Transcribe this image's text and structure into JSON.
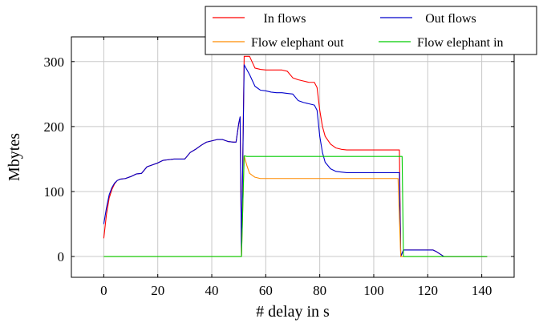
{
  "chart_data": {
    "type": "line",
    "xlabel": "# delay in s",
    "ylabel": "Mbytes",
    "xlim": [
      -12,
      152
    ],
    "ylim": [
      -32,
      338
    ],
    "xticks": [
      0,
      20,
      40,
      60,
      80,
      100,
      120,
      140
    ],
    "yticks": [
      0,
      100,
      200,
      300
    ],
    "grid": true,
    "legend_position": "top-right",
    "series": [
      {
        "name": "In flows",
        "color": "#ff0000",
        "points": [
          [
            0,
            28
          ],
          [
            1,
            65
          ],
          [
            2,
            90
          ],
          [
            3,
            103
          ],
          [
            4,
            112
          ],
          [
            5,
            117
          ],
          [
            6,
            119
          ],
          [
            8,
            120
          ],
          [
            10,
            123
          ],
          [
            12,
            127
          ],
          [
            14,
            128
          ],
          [
            16,
            138
          ],
          [
            18,
            141
          ],
          [
            20,
            144
          ],
          [
            22,
            148
          ],
          [
            24,
            149
          ],
          [
            26,
            150
          ],
          [
            28,
            150
          ],
          [
            30,
            150
          ],
          [
            32,
            160
          ],
          [
            34,
            165
          ],
          [
            36,
            171
          ],
          [
            38,
            176
          ],
          [
            40,
            178
          ],
          [
            42,
            180
          ],
          [
            44,
            180
          ],
          [
            46,
            177
          ],
          [
            48,
            176
          ],
          [
            49,
            176
          ],
          [
            50,
            205
          ],
          [
            50.5,
            214
          ],
          [
            51,
            2
          ],
          [
            52,
            308
          ],
          [
            54,
            308
          ],
          [
            56,
            290
          ],
          [
            58,
            288
          ],
          [
            60,
            287
          ],
          [
            66,
            287
          ],
          [
            68,
            285
          ],
          [
            70,
            275
          ],
          [
            72,
            272
          ],
          [
            74,
            270
          ],
          [
            76,
            268
          ],
          [
            78,
            268
          ],
          [
            79,
            260
          ],
          [
            80,
            225
          ],
          [
            81,
            200
          ],
          [
            82,
            185
          ],
          [
            84,
            173
          ],
          [
            86,
            167
          ],
          [
            88,
            165
          ],
          [
            90,
            164
          ],
          [
            100,
            164
          ],
          [
            109,
            164
          ],
          [
            109.5,
            164
          ],
          [
            110,
            0
          ],
          [
            111,
            10
          ],
          [
            112,
            10
          ],
          [
            122,
            10
          ],
          [
            123,
            8
          ],
          [
            126,
            0
          ],
          [
            130,
            0
          ],
          [
            140,
            0
          ],
          [
            142,
            0
          ]
        ]
      },
      {
        "name": "Out flows",
        "color": "#0000cc",
        "points": [
          [
            0,
            50
          ],
          [
            1,
            75
          ],
          [
            2,
            95
          ],
          [
            3,
            106
          ],
          [
            4,
            113
          ],
          [
            5,
            117
          ],
          [
            6,
            119
          ],
          [
            8,
            120
          ],
          [
            10,
            123
          ],
          [
            12,
            127
          ],
          [
            14,
            128
          ],
          [
            16,
            138
          ],
          [
            18,
            141
          ],
          [
            20,
            144
          ],
          [
            22,
            148
          ],
          [
            24,
            149
          ],
          [
            26,
            150
          ],
          [
            28,
            150
          ],
          [
            30,
            150
          ],
          [
            32,
            160
          ],
          [
            34,
            165
          ],
          [
            36,
            171
          ],
          [
            38,
            176
          ],
          [
            40,
            178
          ],
          [
            42,
            180
          ],
          [
            44,
            180
          ],
          [
            46,
            177
          ],
          [
            48,
            176
          ],
          [
            49,
            176
          ],
          [
            50,
            205
          ],
          [
            50.5,
            215
          ],
          [
            51,
            2
          ],
          [
            52,
            295
          ],
          [
            54,
            280
          ],
          [
            56,
            262
          ],
          [
            58,
            256
          ],
          [
            60,
            255
          ],
          [
            62,
            253
          ],
          [
            64,
            252
          ],
          [
            66,
            252
          ],
          [
            68,
            251
          ],
          [
            70,
            250
          ],
          [
            72,
            240
          ],
          [
            74,
            237
          ],
          [
            76,
            235
          ],
          [
            78,
            233
          ],
          [
            79,
            225
          ],
          [
            80,
            185
          ],
          [
            81,
            160
          ],
          [
            82,
            145
          ],
          [
            84,
            135
          ],
          [
            86,
            131
          ],
          [
            88,
            130
          ],
          [
            90,
            129
          ],
          [
            100,
            129
          ],
          [
            109,
            129
          ],
          [
            109.5,
            129
          ],
          [
            110,
            0
          ],
          [
            111,
            10
          ],
          [
            112,
            10
          ],
          [
            122,
            10
          ],
          [
            123,
            8
          ],
          [
            126,
            0
          ],
          [
            130,
            0
          ],
          [
            140,
            0
          ],
          [
            142,
            0
          ]
        ]
      },
      {
        "name": "Flow elephant out",
        "color": "#ff8c00",
        "points": [
          [
            0,
            0
          ],
          [
            20,
            0
          ],
          [
            40,
            0
          ],
          [
            50,
            0
          ],
          [
            51,
            0
          ],
          [
            52,
            155
          ],
          [
            53,
            140
          ],
          [
            54,
            128
          ],
          [
            56,
            122
          ],
          [
            58,
            120
          ],
          [
            80,
            120
          ],
          [
            100,
            120
          ],
          [
            109,
            120
          ],
          [
            110,
            0
          ],
          [
            111,
            0
          ],
          [
            120,
            0
          ],
          [
            142,
            0
          ]
        ]
      },
      {
        "name": "Flow elephant in",
        "color": "#00cc00",
        "points": [
          [
            0,
            0
          ],
          [
            20,
            0
          ],
          [
            40,
            0
          ],
          [
            50,
            0
          ],
          [
            51,
            0
          ],
          [
            52,
            155
          ],
          [
            53,
            154
          ],
          [
            80,
            154
          ],
          [
            100,
            154
          ],
          [
            110,
            154
          ],
          [
            110.5,
            154
          ],
          [
            111,
            0
          ],
          [
            120,
            0
          ],
          [
            142,
            0
          ]
        ]
      }
    ]
  }
}
